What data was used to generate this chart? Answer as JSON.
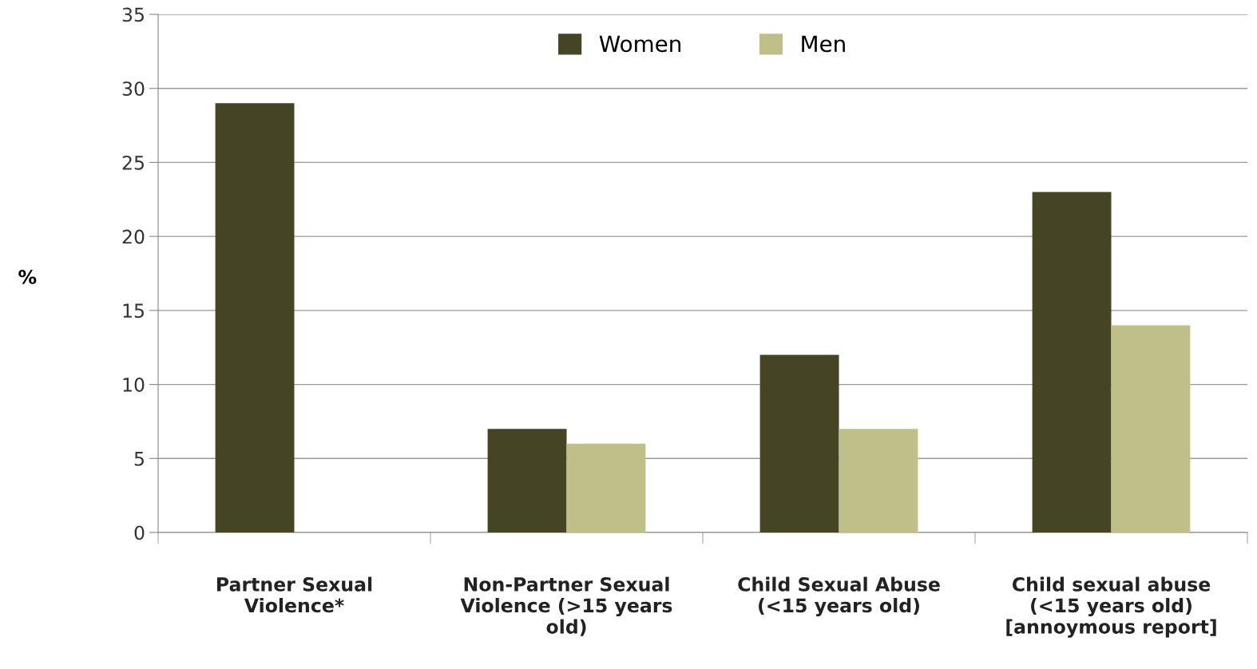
{
  "chart_data": {
    "type": "bar",
    "ylabel": "%",
    "categories": [
      "Partner Sexual Violence*",
      "Non-Partner Sexual Violence (>15 years old)",
      "Child Sexual Abuse (<15 years old)",
      "Child sexual abuse (<15 years old) [annoymous report]"
    ],
    "series": [
      {
        "name": "Women",
        "color": "#454526",
        "values": [
          29,
          7,
          12,
          23
        ]
      },
      {
        "name": "Men",
        "color": "#bfbf8a",
        "values": [
          null,
          6,
          7,
          14
        ]
      }
    ],
    "ylim": [
      0,
      35
    ],
    "yticks": [
      0,
      5,
      10,
      15,
      20,
      25,
      30,
      35
    ],
    "grid": "y",
    "legend": "top"
  }
}
